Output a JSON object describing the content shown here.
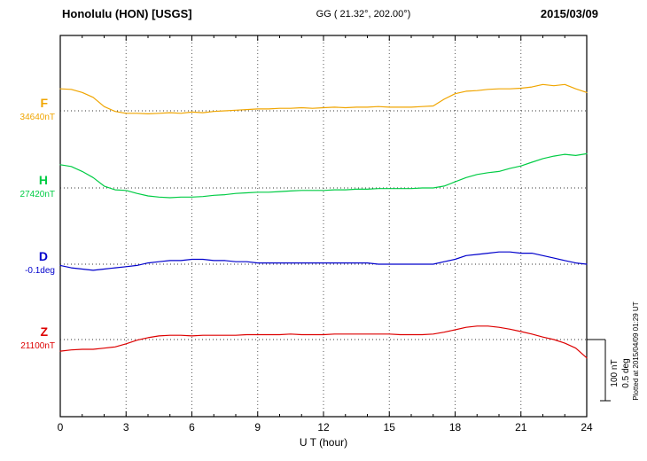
{
  "header": {
    "station": "Honolulu (HON)  [USGS]",
    "gg": "GG ( 21.32°, 202.00°)",
    "date": "2015/03/09"
  },
  "footer": {
    "xlabel": "U T (hour)",
    "plotted_at": "Plotted at 2015/04/09 01:29 UT"
  },
  "scale_bar": {
    "nt_label": "100 nT",
    "deg_label": "0.5 deg"
  },
  "chart_data": {
    "type": "line",
    "title": "Honolulu (HON) [USGS] magnetogram 2015/03/09",
    "xlabel": "U T (hour)",
    "x_range": [
      0,
      24
    ],
    "x_ticks": [
      0,
      3,
      6,
      9,
      12,
      15,
      18,
      21,
      24
    ],
    "x_start": 0,
    "x_step_hours": 0.5,
    "scale": {
      "nT_per_bar": 100,
      "deg_per_bar": 0.5
    },
    "series": [
      {
        "name": "F",
        "unit": "nT",
        "baseline": 34640,
        "baseline_label": "34640nT",
        "color": "#f0a500",
        "values": [
          34676,
          34675,
          34670,
          34662,
          34647,
          34639,
          34636,
          34636,
          34635,
          34636,
          34637,
          34636,
          34638,
          34637,
          34639,
          34640,
          34641,
          34642,
          34643,
          34643,
          34644,
          34644,
          34645,
          34644,
          34645,
          34646,
          34645,
          34646,
          34646,
          34647,
          34646,
          34646,
          34646,
          34647,
          34648,
          34659,
          34668,
          34672,
          34673,
          34675,
          34676,
          34676,
          34677,
          34679,
          34683,
          34681,
          34683,
          34676,
          34670
        ]
      },
      {
        "name": "H",
        "unit": "nT",
        "baseline": 27420,
        "baseline_label": "27420nT",
        "color": "#00cc44",
        "values": [
          27458,
          27455,
          27447,
          27437,
          27423,
          27417,
          27416,
          27411,
          27407,
          27405,
          27404,
          27405,
          27405,
          27406,
          27408,
          27409,
          27411,
          27412,
          27413,
          27413,
          27414,
          27415,
          27416,
          27416,
          27416,
          27417,
          27417,
          27418,
          27418,
          27419,
          27419,
          27419,
          27419,
          27420,
          27420,
          27423,
          27430,
          27437,
          27442,
          27445,
          27447,
          27452,
          27456,
          27462,
          27468,
          27472,
          27475,
          27473,
          27476
        ]
      },
      {
        "name": "D",
        "unit": "deg",
        "baseline": -0.1,
        "baseline_label": "-0.1deg",
        "color": "#0000cc",
        "values": [
          -0.11,
          -0.13,
          -0.14,
          -0.15,
          -0.14,
          -0.13,
          -0.12,
          -0.11,
          -0.09,
          -0.08,
          -0.07,
          -0.07,
          -0.06,
          -0.06,
          -0.07,
          -0.07,
          -0.08,
          -0.08,
          -0.09,
          -0.09,
          -0.09,
          -0.09,
          -0.09,
          -0.09,
          -0.09,
          -0.09,
          -0.09,
          -0.09,
          -0.09,
          -0.1,
          -0.1,
          -0.1,
          -0.1,
          -0.1,
          -0.1,
          -0.08,
          -0.06,
          -0.03,
          -0.02,
          -0.01,
          0.0,
          0.0,
          -0.01,
          -0.01,
          -0.03,
          -0.05,
          -0.07,
          -0.09,
          -0.1
        ]
      },
      {
        "name": "Z",
        "unit": "nT",
        "baseline": 21100,
        "baseline_label": "21100nT",
        "color": "#dd0000",
        "values": [
          21081,
          21083,
          21084,
          21084,
          21086,
          21088,
          21093,
          21099,
          21103,
          21106,
          21107,
          21107,
          21106,
          21107,
          21107,
          21107,
          21107,
          21108,
          21108,
          21108,
          21108,
          21109,
          21108,
          21108,
          21108,
          21109,
          21109,
          21109,
          21109,
          21109,
          21109,
          21108,
          21108,
          21108,
          21109,
          21112,
          21116,
          21120,
          21122,
          21122,
          21120,
          21117,
          21113,
          21109,
          21104,
          21100,
          21094,
          21086,
          21070
        ]
      }
    ]
  }
}
